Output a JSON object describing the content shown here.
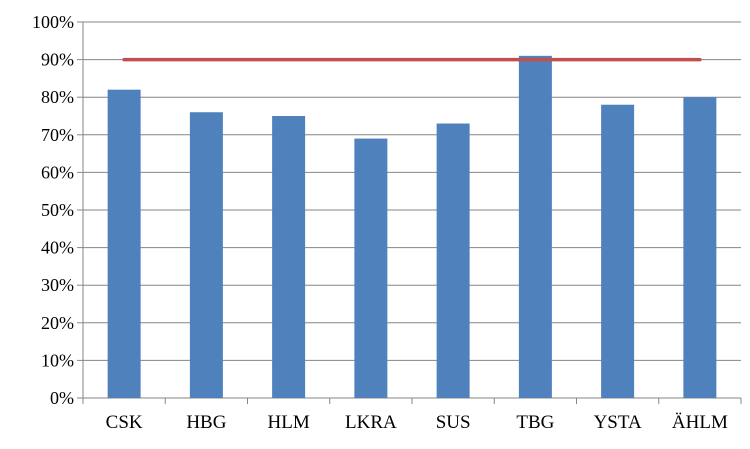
{
  "chart_data": {
    "type": "bar",
    "categories": [
      "CSK",
      "HBG",
      "HLM",
      "LKRA",
      "SUS",
      "TBG",
      "YSTA",
      "ÄHLM"
    ],
    "series": [
      {
        "type": "bar",
        "values": [
          0.82,
          0.76,
          0.75,
          0.69,
          0.73,
          0.91,
          0.78,
          0.8
        ],
        "color": "#4F81BD"
      },
      {
        "type": "line",
        "values": [
          0.9,
          0.9,
          0.9,
          0.9,
          0.9,
          0.9,
          0.9,
          0.9
        ],
        "color": "#C0504D"
      }
    ],
    "ylim": [
      0,
      1
    ],
    "yticks": [
      {
        "value": 0.0,
        "label": "0%"
      },
      {
        "value": 0.1,
        "label": "10%"
      },
      {
        "value": 0.2,
        "label": "20%"
      },
      {
        "value": 0.3,
        "label": "30%"
      },
      {
        "value": 0.4,
        "label": "40%"
      },
      {
        "value": 0.5,
        "label": "50%"
      },
      {
        "value": 0.6,
        "label": "60%"
      },
      {
        "value": 0.7,
        "label": "70%"
      },
      {
        "value": 0.8,
        "label": "80%"
      },
      {
        "value": 0.9,
        "label": "90%"
      },
      {
        "value": 1.0,
        "label": "100%"
      }
    ],
    "title": "",
    "xlabel": "",
    "ylabel": "",
    "grid": "horizontal",
    "legend": "none"
  }
}
